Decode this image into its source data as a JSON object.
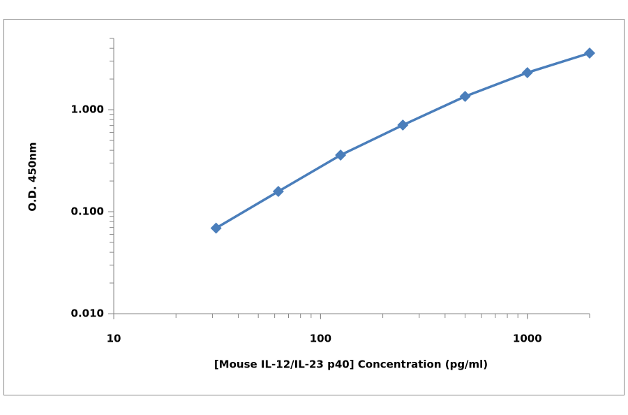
{
  "chart_data": {
    "type": "line",
    "x_label": "[Mouse IL-12/IL-23 p40] Concentration (pg/ml)",
    "y_label": "O.D. 450nm",
    "x": [
      31.25,
      62.5,
      125,
      250,
      500,
      1000,
      2000
    ],
    "series": [
      {
        "color": "#4a7ebb",
        "values": [
          0.069,
          0.158,
          0.359,
          0.707,
          1.35,
          2.31,
          3.59
        ]
      }
    ],
    "xlim": [
      10,
      2000
    ],
    "xticks": [
      10,
      100,
      1000
    ],
    "ylim": [
      0.01,
      5
    ],
    "yticks": [
      {
        "value": 0.01,
        "label": "0.010"
      },
      {
        "value": 0.1,
        "label": "0.100"
      },
      {
        "value": 1,
        "label": "1.000"
      }
    ],
    "xlog": true,
    "ylog": true,
    "minor_ticks": true,
    "grid": false,
    "marker": "diamond"
  }
}
